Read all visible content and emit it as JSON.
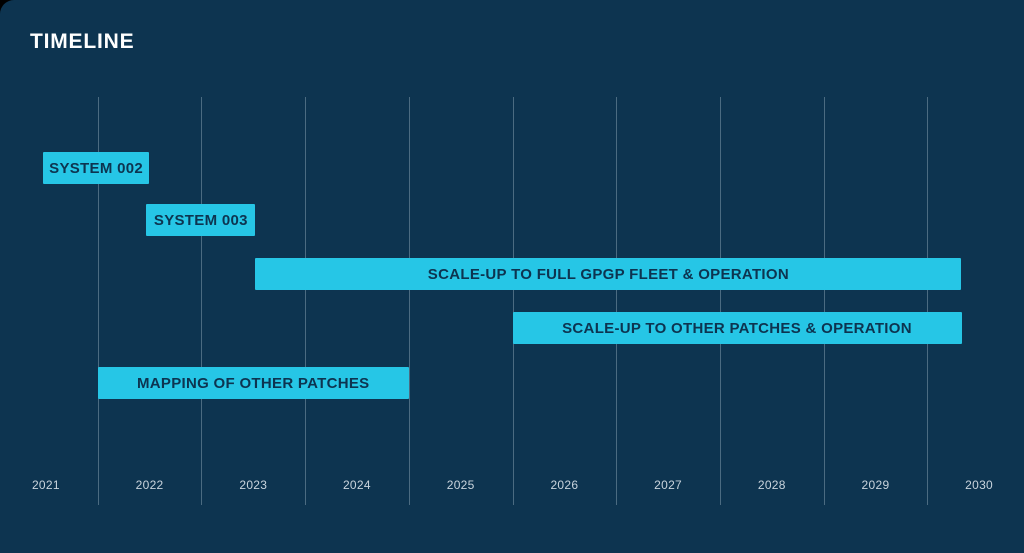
{
  "colors": {
    "background": "#0d3450",
    "bar_fill": "#26c6e6",
    "bar_text": "#0d3450",
    "gridline": "rgba(220,235,245,0.30)",
    "year_label": "#c9d4dd",
    "title_text": "#ffffff"
  },
  "chart_data": {
    "type": "gantt",
    "title": "TIMELINE",
    "axis": {
      "unit": "year",
      "orientation": "horizontal",
      "years": [
        2021,
        2022,
        2023,
        2024,
        2025,
        2026,
        2027,
        2028,
        2029,
        2030
      ],
      "gridline_years": [
        2022,
        2023,
        2024,
        2025,
        2026,
        2027,
        2028,
        2029,
        2030
      ],
      "range": [
        2021,
        2031
      ],
      "grid": true,
      "legend": false
    },
    "bars": [
      {
        "label": "SYSTEM 002",
        "start": 2021.47,
        "end": 2022.5
      },
      {
        "label": "SYSTEM 003",
        "start": 2022.47,
        "end": 2023.52
      },
      {
        "label": "SCALE-UP TO FULL GPGP FLEET & OPERATION",
        "start": 2023.52,
        "end": 2030.33
      },
      {
        "label": "SCALE-UP TO OTHER PATCHES & OPERATION",
        "start": 2026.0,
        "end": 2030.33
      },
      {
        "label": "MAPPING OF OTHER PATCHES",
        "start": 2022.0,
        "end": 2025.0
      }
    ]
  }
}
